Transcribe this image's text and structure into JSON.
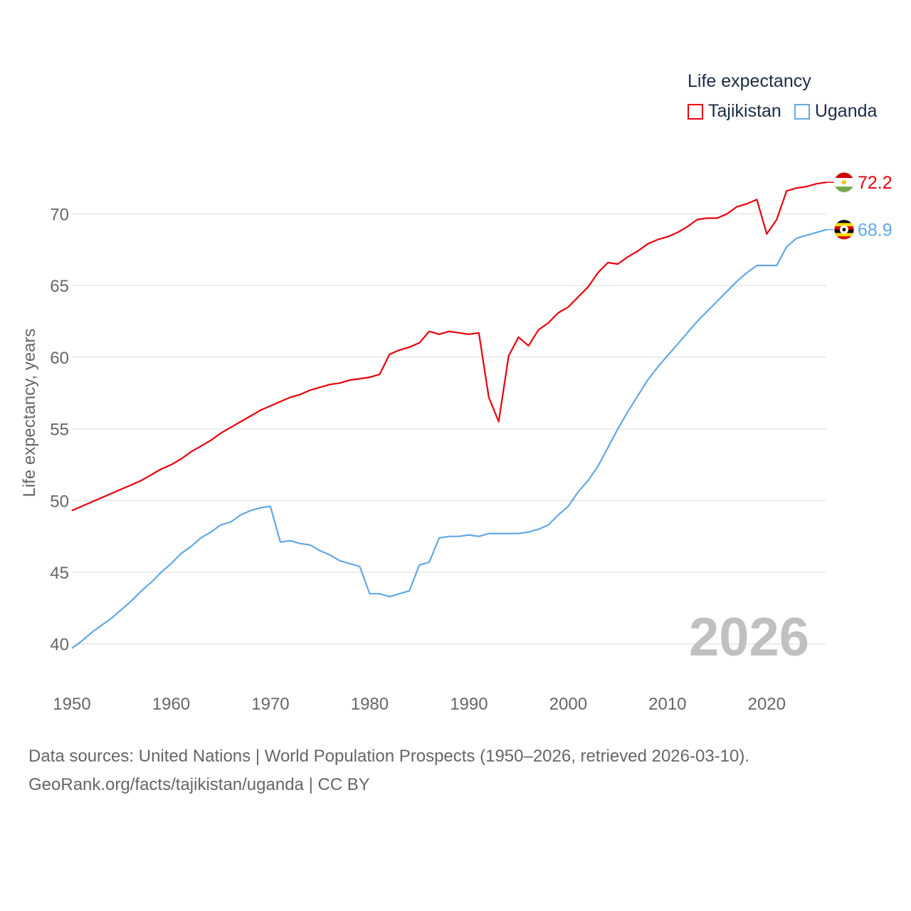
{
  "legend": {
    "title": "Life expectancy",
    "items": [
      {
        "name": "Tajikistan",
        "color": "#e8000b"
      },
      {
        "name": "Uganda",
        "color": "#62a8e5"
      }
    ]
  },
  "footer": {
    "line1": "Data sources: United Nations | World Population Prospects (1950–2026, retrieved 2026-03-10).",
    "line2": "GeoRank.org/facts/tajikistan/uganda | CC BY"
  },
  "chart_data": {
    "type": "line",
    "title": "Life expectancy",
    "ylabel": "Life expectancy, years",
    "xlabel": "",
    "current_year": "2026",
    "xlim": [
      1950,
      2026
    ],
    "ylim": [
      38,
      73.5
    ],
    "xticks": [
      1950,
      1960,
      1970,
      1980,
      1990,
      2000,
      2010,
      2020
    ],
    "yticks": [
      40,
      45,
      50,
      55,
      60,
      65,
      70
    ],
    "grid": true,
    "x": [
      1950,
      1951,
      1952,
      1953,
      1954,
      1955,
      1956,
      1957,
      1958,
      1959,
      1960,
      1961,
      1962,
      1963,
      1964,
      1965,
      1966,
      1967,
      1968,
      1969,
      1970,
      1971,
      1972,
      1973,
      1974,
      1975,
      1976,
      1977,
      1978,
      1979,
      1980,
      1981,
      1982,
      1983,
      1984,
      1985,
      1986,
      1987,
      1988,
      1989,
      1990,
      1991,
      1992,
      1993,
      1994,
      1995,
      1996,
      1997,
      1998,
      1999,
      2000,
      2001,
      2002,
      2003,
      2004,
      2005,
      2006,
      2007,
      2008,
      2009,
      2010,
      2011,
      2012,
      2013,
      2014,
      2015,
      2016,
      2017,
      2018,
      2019,
      2020,
      2021,
      2022,
      2023,
      2024,
      2025,
      2026
    ],
    "series": [
      {
        "name": "Tajikistan",
        "color": "#e8000b",
        "end_label": "72.2",
        "values": [
          49.3,
          49.6,
          49.9,
          50.2,
          50.5,
          50.8,
          51.1,
          51.4,
          51.8,
          52.2,
          52.5,
          52.9,
          53.4,
          53.8,
          54.2,
          54.7,
          55.1,
          55.5,
          55.9,
          56.3,
          56.6,
          56.9,
          57.2,
          57.4,
          57.7,
          57.9,
          58.1,
          58.2,
          58.4,
          58.5,
          58.6,
          58.8,
          60.2,
          60.5,
          60.7,
          61.0,
          61.8,
          61.6,
          61.8,
          61.7,
          61.6,
          61.7,
          57.2,
          55.5,
          60.1,
          61.4,
          60.8,
          61.9,
          62.4,
          63.1,
          63.5,
          64.2,
          64.9,
          65.9,
          66.6,
          66.5,
          67.0,
          67.4,
          67.9,
          68.2,
          68.4,
          68.7,
          69.1,
          69.6,
          69.7,
          69.7,
          70.0,
          70.5,
          70.7,
          71.0,
          68.6,
          69.6,
          71.6,
          71.8,
          71.9,
          72.1,
          72.2
        ]
      },
      {
        "name": "Uganda",
        "color": "#62a8e5",
        "end_label": "68.9",
        "values": [
          39.7,
          40.2,
          40.8,
          41.3,
          41.8,
          42.4,
          43.0,
          43.7,
          44.3,
          45.0,
          45.6,
          46.3,
          46.8,
          47.4,
          47.8,
          48.3,
          48.5,
          49.0,
          49.3,
          49.5,
          49.6,
          47.1,
          47.2,
          47.0,
          46.9,
          46.5,
          46.2,
          45.8,
          45.6,
          45.4,
          43.5,
          43.5,
          43.3,
          43.5,
          43.7,
          45.5,
          45.7,
          47.4,
          47.5,
          47.5,
          47.6,
          47.5,
          47.7,
          47.7,
          47.7,
          47.7,
          47.8,
          48.0,
          48.3,
          49.0,
          49.6,
          50.6,
          51.4,
          52.4,
          53.7,
          55.0,
          56.2,
          57.3,
          58.4,
          59.3,
          60.1,
          60.9,
          61.7,
          62.5,
          63.2,
          63.9,
          64.6,
          65.3,
          65.9,
          66.4,
          66.4,
          66.4,
          67.7,
          68.3,
          68.5,
          68.7,
          68.9
        ]
      }
    ]
  }
}
